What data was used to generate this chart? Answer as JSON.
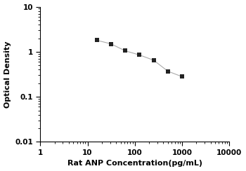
{
  "x_data": [
    15.6,
    31.2,
    62.5,
    125,
    250,
    500,
    1000
  ],
  "y_data": [
    1.8,
    1.5,
    1.05,
    0.85,
    0.65,
    0.37,
    0.28
  ],
  "marker": "s",
  "marker_color": "#222222",
  "marker_size": 4,
  "line_color": "#aaaaaa",
  "line_width": 0.8,
  "xlabel": "Rat ANP Concentration(pg/mL)",
  "ylabel": "Optical Density",
  "xlim": [
    1,
    10000
  ],
  "ylim": [
    0.01,
    10
  ],
  "xtick_vals": [
    1,
    10,
    100,
    1000,
    10000
  ],
  "xtick_labels": [
    "1",
    "10",
    "100",
    "1000",
    "10000"
  ],
  "ytick_vals": [
    0.01,
    0.1,
    1,
    10
  ],
  "ytick_labels": [
    "0.01",
    "0.1",
    "1",
    "10"
  ],
  "background_color": "#ffffff",
  "label_fontsize": 8,
  "tick_fontsize": 7.5,
  "label_fontweight": "bold"
}
